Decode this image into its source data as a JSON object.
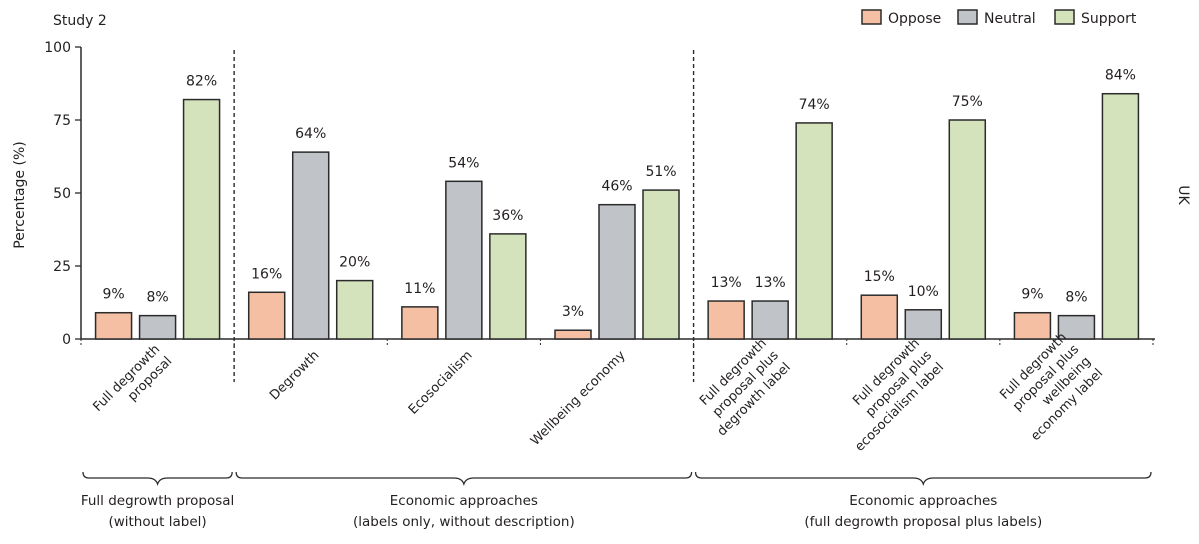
{
  "chart_data": {
    "type": "bar",
    "title": "Study 2",
    "ylabel": "Percentage (%)",
    "xlabel": "",
    "side_label": "UK",
    "ylim": [
      0,
      100
    ],
    "yticks": [
      0,
      25,
      50,
      75,
      100
    ],
    "grid": false,
    "legend_position": "top-right",
    "series": [
      {
        "name": "Oppose",
        "color": "#f5bfa3",
        "values": [
          9,
          16,
          11,
          3,
          13,
          15,
          9
        ]
      },
      {
        "name": "Neutral",
        "color": "#c0c4c8",
        "values": [
          8,
          64,
          54,
          46,
          13,
          10,
          8
        ]
      },
      {
        "name": "Support",
        "color": "#d5e3bd",
        "values": [
          82,
          20,
          36,
          51,
          74,
          75,
          84
        ]
      }
    ],
    "categories": [
      "Full degrowth proposal",
      "Degrowth",
      "Ecosocialism",
      "Wellbeing economy",
      "Full degrowth proposal plus degrowth label",
      "Full degrowth proposal plus ecosocialism label",
      "Full degrowth proposal plus wellbeing economy label"
    ],
    "category_label_lines": [
      [
        "Full degrowth",
        "proposal"
      ],
      [
        "Degrowth"
      ],
      [
        "Ecosocialism"
      ],
      [
        "Wellbeing economy"
      ],
      [
        "Full degrowth",
        "proposal plus",
        "degrowth label"
      ],
      [
        "Full degrowth",
        "proposal plus",
        "ecosocialism label"
      ],
      [
        "Full degrowth",
        "proposal plus",
        "wellbeing",
        "economy label"
      ]
    ],
    "value_suffix": "%",
    "groups": [
      {
        "label_lines": [
          "Full degrowth proposal",
          "(without label)"
        ],
        "categories": [
          0
        ]
      },
      {
        "label_lines": [
          "Economic approaches",
          "(labels only, without description)"
        ],
        "categories": [
          1,
          2,
          3
        ]
      },
      {
        "label_lines": [
          "Economic approaches",
          "(full degrowth proposal plus labels)"
        ],
        "categories": [
          4,
          5,
          6
        ]
      }
    ],
    "separators_after_category": [
      0,
      3
    ]
  }
}
